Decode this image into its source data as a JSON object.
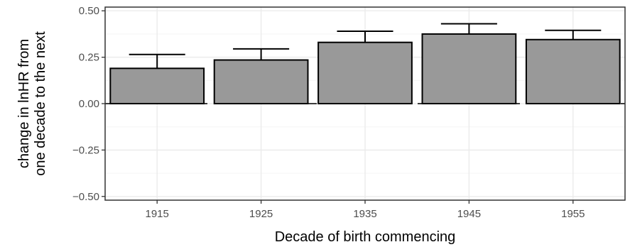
{
  "chart_data": {
    "type": "bar",
    "title": "",
    "xlabel": "Decade of birth commencing",
    "ylabel_lines": [
      "change in lnHR from",
      "one decade to the next"
    ],
    "categories": [
      "1915",
      "1925",
      "1935",
      "1945",
      "1955"
    ],
    "values": [
      0.19,
      0.235,
      0.33,
      0.375,
      0.345
    ],
    "error_upper": [
      0.265,
      0.295,
      0.39,
      0.43,
      0.395
    ],
    "ylim": [
      -0.52,
      0.52
    ],
    "yticks": [
      -0.5,
      -0.25,
      0.0,
      0.25,
      0.5
    ],
    "ytick_labels": [
      "−0.50",
      "−0.25",
      "0.00",
      "0.25",
      "0.50"
    ],
    "reference_line": 0,
    "grid": true,
    "bar_color": "#999999",
    "bar_edge_color": "#000000",
    "grid_major_color": "#ebebeb",
    "grid_minor_color": "#f5f5f5",
    "panel_border_color": "#333333"
  }
}
